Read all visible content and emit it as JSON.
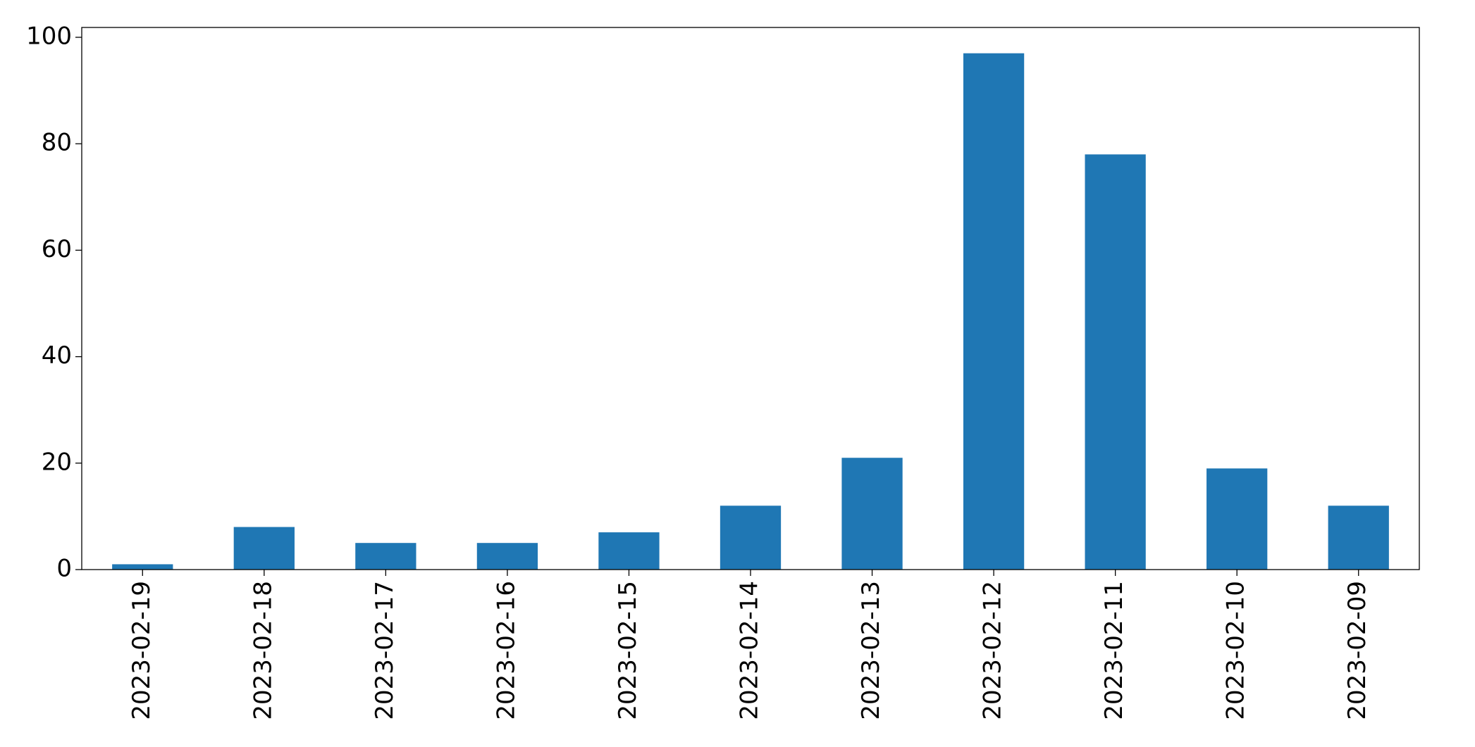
{
  "chart_data": {
    "type": "bar",
    "categories": [
      "2023-02-19",
      "2023-02-18",
      "2023-02-17",
      "2023-02-16",
      "2023-02-15",
      "2023-02-14",
      "2023-02-13",
      "2023-02-12",
      "2023-02-11",
      "2023-02-10",
      "2023-02-09"
    ],
    "values": [
      1,
      8,
      5,
      5,
      7,
      12,
      21,
      97,
      78,
      19,
      12
    ],
    "color": "#1f77b4",
    "ylim": [
      0,
      101.85
    ],
    "yticks": [
      0,
      20,
      40,
      60,
      80,
      100
    ],
    "grid": false
  }
}
